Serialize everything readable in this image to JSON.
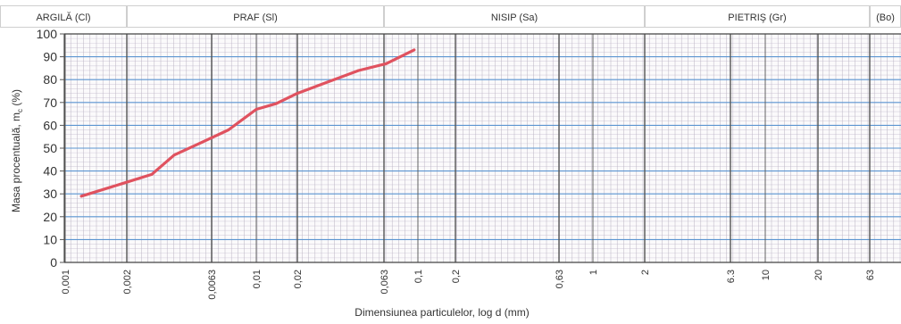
{
  "colors": {
    "curve": "#e0525f",
    "hgrid": "#5b95d1",
    "vgrid_major": "#555555",
    "vgrid_minor": "#b9b2c2",
    "hgrid_minor": "#d6d0de",
    "header_border": "#cfcfcf",
    "paper": "#fbfafb"
  },
  "chart_data": {
    "type": "line",
    "xscale": "log",
    "xlabel": "Dimensiunea particulelor, log d (mm)",
    "ylabel": "Masa procentuală, m",
    "ylabel_subscript": "c",
    "ylabel_unit": "(%)",
    "ylim": [
      0,
      100
    ],
    "yticks": [
      0,
      10,
      20,
      30,
      40,
      50,
      60,
      70,
      80,
      90,
      100
    ],
    "xticks": [
      "0,001",
      "0,002",
      "0,0063",
      "0,01",
      "0,02",
      "0,063",
      "0,1",
      "0,2",
      "0,63",
      "1",
      "2",
      "6.3",
      "10",
      "20",
      "63"
    ],
    "fractions": [
      {
        "label": "ARGILĂ (Cl)",
        "from": "0,001",
        "to": "0,002"
      },
      {
        "label": "PRAF (Sl)",
        "from": "0,002",
        "to": "0,063"
      },
      {
        "label": "NISIP (Sa)",
        "from": "0,063",
        "to": "2"
      },
      {
        "label": "PIETRIŞ (Gr)",
        "from": "2",
        "to": "63"
      },
      {
        "label": "(Bo)",
        "from": "63",
        "to": ""
      }
    ],
    "grid": true,
    "series": [
      {
        "x": [
          0.0012,
          0.0019,
          0.0028,
          0.0038,
          0.0055,
          0.0075,
          0.01,
          0.014,
          0.02,
          0.03,
          0.045,
          0.065,
          0.095
        ],
        "y": [
          29,
          34.5,
          38.5,
          47,
          52.5,
          58,
          67,
          69.5,
          74,
          79,
          84,
          87,
          93
        ]
      }
    ]
  }
}
